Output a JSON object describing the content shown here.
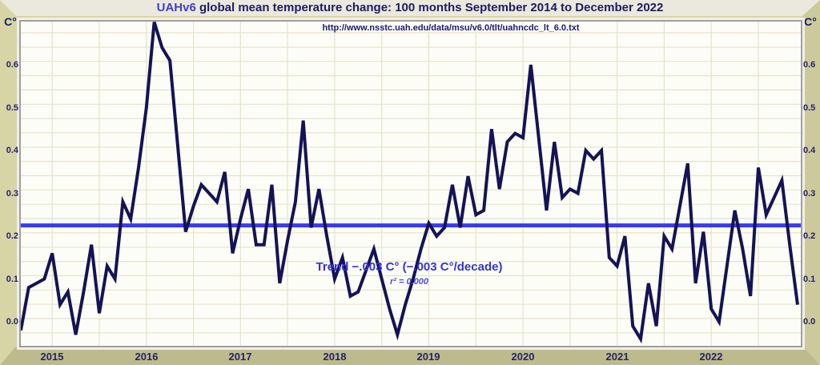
{
  "title": {
    "accent": "UAHv6",
    "rest": " global mean temperature change: 100 months September 2014 to December 2022"
  },
  "subtitle_url": "http://www.nsstc.uah.edu/data/msu/v6.0/tlt/uahncdc_lt_6.0.txt",
  "axes": {
    "y_unit_label": "C°",
    "y_ticks": [
      "0.6",
      "0.5",
      "0.4",
      "0.3",
      "0.2",
      "0.1",
      "0.0"
    ],
    "x_ticks": [
      "2015",
      "2016",
      "2017",
      "2018",
      "2019",
      "2020",
      "2021",
      "2022"
    ]
  },
  "annotations": {
    "trend_label": "Trend −.003 C° (−.003 C°/decade)",
    "r_squared_label": "r² = 0.000"
  },
  "colors": {
    "background": "#d8d5a8",
    "plot_background": "#fdfdf7",
    "grid": "#e5e3ca",
    "data_line": "#131356",
    "trend_line": "#3a3aee",
    "title_accent": "#4040cc",
    "text": "#1b1b66",
    "annotation": "#3333dd"
  },
  "chart_data": {
    "type": "line",
    "series_name": "UAH v6.0 lower-troposphere global mean temperature anomaly",
    "unit": "C°",
    "x_start": "September 2014",
    "x_end": "December 2022",
    "n_points": 100,
    "x_tick_years": [
      2015,
      2016,
      2017,
      2018,
      2019,
      2020,
      2021,
      2022
    ],
    "y_ticks": [
      0.0,
      0.1,
      0.2,
      0.3,
      0.4,
      0.5,
      0.6
    ],
    "ylim": [
      -0.06,
      0.7
    ],
    "grid": true,
    "values": [
      -0.02,
      0.08,
      0.09,
      0.1,
      0.16,
      0.04,
      0.07,
      -0.03,
      0.07,
      0.18,
      0.02,
      0.13,
      0.1,
      0.28,
      0.24,
      0.36,
      0.5,
      0.71,
      0.64,
      0.61,
      0.41,
      0.21,
      0.27,
      0.32,
      0.3,
      0.28,
      0.35,
      0.16,
      0.24,
      0.31,
      0.18,
      0.18,
      0.32,
      0.09,
      0.19,
      0.28,
      0.47,
      0.22,
      0.31,
      0.2,
      0.1,
      0.15,
      0.06,
      0.07,
      0.12,
      0.17,
      0.1,
      0.03,
      -0.03,
      0.04,
      0.1,
      0.17,
      0.23,
      0.2,
      0.22,
      0.32,
      0.22,
      0.34,
      0.25,
      0.26,
      0.45,
      0.31,
      0.42,
      0.44,
      0.43,
      0.6,
      0.43,
      0.26,
      0.42,
      0.29,
      0.31,
      0.3,
      0.4,
      0.38,
      0.4,
      0.15,
      0.13,
      0.2,
      -0.01,
      -0.04,
      0.09,
      -0.01,
      0.2,
      0.17,
      0.27,
      0.37,
      0.09,
      0.21,
      0.03,
      0.0,
      0.13,
      0.26,
      0.17,
      0.06,
      0.36,
      0.25,
      0.29,
      0.33,
      0.18,
      0.04
    ],
    "trend_value": 0.225,
    "trend_slope_per_decade": -0.003,
    "r_squared": 0.0
  }
}
